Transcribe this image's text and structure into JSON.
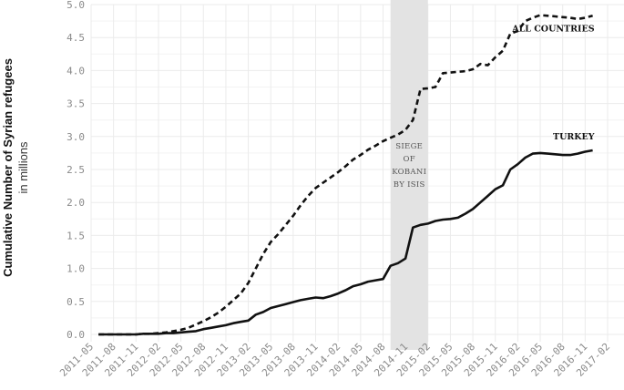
{
  "chart_data": {
    "type": "line",
    "ylabel": "Cumulative Number of Syrian refugees",
    "ylabel_sub": "in millions",
    "ylim": [
      0,
      5.0
    ],
    "yticks": [
      "0.0",
      "0.5",
      "1.0",
      "1.5",
      "2.0",
      "2.5",
      "3.0",
      "3.5",
      "4.0",
      "4.5",
      "5.0"
    ],
    "xlim": [
      "2011-05",
      "2017-02"
    ],
    "xticks": [
      "2011-05",
      "2011-08",
      "2011-11",
      "2012-02",
      "2012-05",
      "2012-08",
      "2012-11",
      "2013-02",
      "2013-05",
      "2013-08",
      "2013-11",
      "2014-02",
      "2014-05",
      "2014-08",
      "2014-11",
      "2015-02",
      "2015-05",
      "2015-08",
      "2015-11",
      "2016-02",
      "2016-05",
      "2016-08",
      "2016-11",
      "2017-02"
    ],
    "grid": true,
    "shaded_region": {
      "start": "2014-09",
      "end": "2015-02",
      "label": [
        "SIEGE",
        "OF",
        "KOBANI",
        "BY ISIS"
      ]
    },
    "series": [
      {
        "name": "ALL COUNTRIES",
        "style": "dashed",
        "x": [
          "2011-06",
          "2011-07",
          "2011-08",
          "2011-09",
          "2011-10",
          "2011-11",
          "2011-12",
          "2012-01",
          "2012-02",
          "2012-03",
          "2012-04",
          "2012-05",
          "2012-06",
          "2012-07",
          "2012-08",
          "2012-09",
          "2012-10",
          "2012-11",
          "2012-12",
          "2013-01",
          "2013-02",
          "2013-03",
          "2013-04",
          "2013-05",
          "2013-06",
          "2013-07",
          "2013-08",
          "2013-09",
          "2013-10",
          "2013-11",
          "2013-12",
          "2014-01",
          "2014-02",
          "2014-03",
          "2014-04",
          "2014-05",
          "2014-06",
          "2014-07",
          "2014-08",
          "2014-09",
          "2014-10",
          "2014-11",
          "2014-12",
          "2015-01",
          "2015-02",
          "2015-03",
          "2015-04",
          "2015-05",
          "2015-06",
          "2015-07",
          "2015-08",
          "2015-09",
          "2015-10",
          "2015-11",
          "2015-12",
          "2016-01",
          "2016-02",
          "2016-03",
          "2016-04",
          "2016-05",
          "2016-06",
          "2016-07",
          "2016-08",
          "2016-09",
          "2016-10",
          "2016-11",
          "2016-12"
        ],
        "values": [
          0.0,
          0.0,
          0.0,
          0.0,
          0.0,
          0.0,
          0.01,
          0.01,
          0.02,
          0.03,
          0.05,
          0.07,
          0.1,
          0.15,
          0.2,
          0.26,
          0.33,
          0.42,
          0.52,
          0.62,
          0.78,
          1.0,
          1.22,
          1.4,
          1.52,
          1.66,
          1.8,
          1.96,
          2.1,
          2.22,
          2.3,
          2.38,
          2.46,
          2.55,
          2.65,
          2.72,
          2.8,
          2.86,
          2.93,
          2.98,
          3.03,
          3.1,
          3.25,
          3.72,
          3.73,
          3.75,
          3.96,
          3.97,
          3.98,
          3.99,
          4.02,
          4.1,
          4.08,
          4.2,
          4.3,
          4.56,
          4.6,
          4.75,
          4.8,
          4.84,
          4.83,
          4.82,
          4.81,
          4.8,
          4.78,
          4.8,
          4.83
        ]
      },
      {
        "name": "TURKEY",
        "style": "solid",
        "x": [
          "2011-06",
          "2011-07",
          "2011-08",
          "2011-09",
          "2011-10",
          "2011-11",
          "2011-12",
          "2012-01",
          "2012-02",
          "2012-03",
          "2012-04",
          "2012-05",
          "2012-06",
          "2012-07",
          "2012-08",
          "2012-09",
          "2012-10",
          "2012-11",
          "2012-12",
          "2013-01",
          "2013-02",
          "2013-03",
          "2013-04",
          "2013-05",
          "2013-06",
          "2013-07",
          "2013-08",
          "2013-09",
          "2013-10",
          "2013-11",
          "2013-12",
          "2014-01",
          "2014-02",
          "2014-03",
          "2014-04",
          "2014-05",
          "2014-06",
          "2014-07",
          "2014-08",
          "2014-09",
          "2014-10",
          "2014-11",
          "2014-12",
          "2015-01",
          "2015-02",
          "2015-03",
          "2015-04",
          "2015-05",
          "2015-06",
          "2015-07",
          "2015-08",
          "2015-09",
          "2015-10",
          "2015-11",
          "2015-12",
          "2016-01",
          "2016-02",
          "2016-03",
          "2016-04",
          "2016-05",
          "2016-06",
          "2016-07",
          "2016-08",
          "2016-09",
          "2016-10",
          "2016-11",
          "2016-12"
        ],
        "values": [
          0.0,
          0.0,
          0.0,
          0.0,
          0.0,
          0.0,
          0.01,
          0.01,
          0.01,
          0.02,
          0.02,
          0.03,
          0.04,
          0.05,
          0.08,
          0.1,
          0.12,
          0.14,
          0.17,
          0.19,
          0.21,
          0.3,
          0.34,
          0.4,
          0.43,
          0.46,
          0.49,
          0.52,
          0.54,
          0.56,
          0.55,
          0.58,
          0.62,
          0.67,
          0.73,
          0.76,
          0.8,
          0.82,
          0.84,
          1.04,
          1.08,
          1.15,
          1.62,
          1.66,
          1.68,
          1.72,
          1.74,
          1.75,
          1.77,
          1.83,
          1.9,
          2.0,
          2.1,
          2.2,
          2.26,
          2.5,
          2.58,
          2.68,
          2.74,
          2.75,
          2.74,
          2.73,
          2.72,
          2.72,
          2.74,
          2.77,
          2.79
        ]
      }
    ]
  }
}
